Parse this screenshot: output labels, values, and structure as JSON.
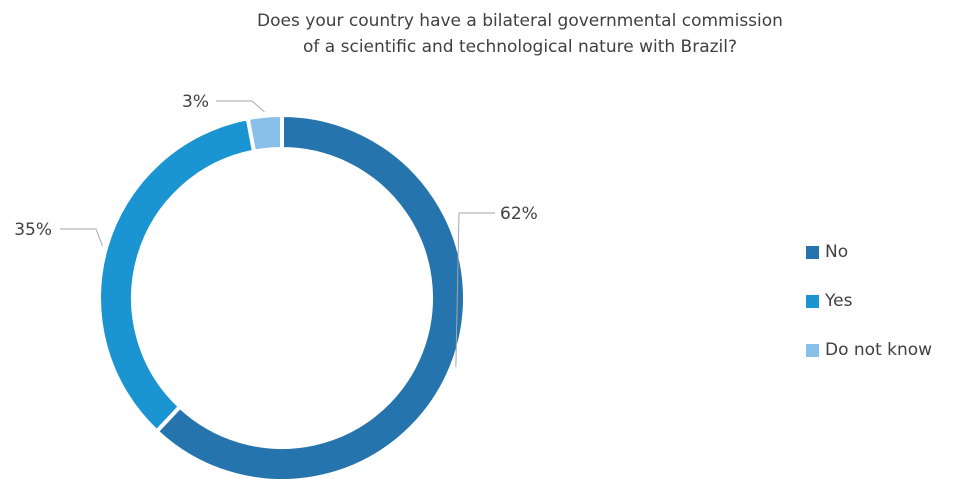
{
  "chart_data": {
    "type": "pie",
    "variant": "donut",
    "title_lines": [
      "Does your country have a bilateral governmental commission",
      "of a scientific and technological nature with Brazil?"
    ],
    "categories": [
      "No",
      "Yes",
      "Do not know"
    ],
    "values": [
      62,
      35,
      3
    ],
    "value_labels": [
      "62%",
      "35%",
      "3%"
    ],
    "colors": [
      "#2674ad",
      "#1b95d1",
      "#89c0ea"
    ],
    "legend_position": "right"
  }
}
